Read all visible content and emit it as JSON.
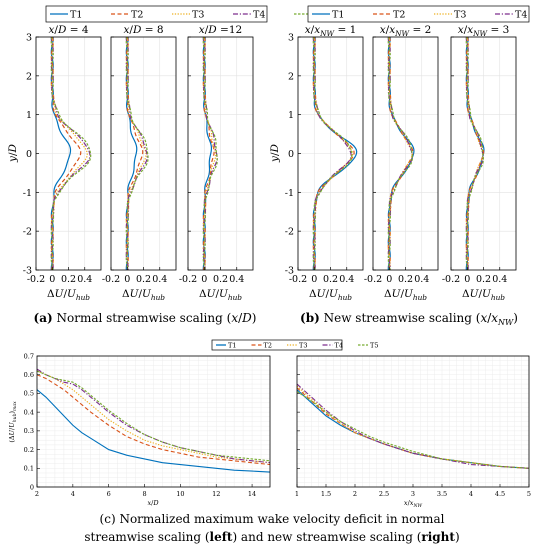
{
  "legend": [
    "T1",
    "T2",
    "T3",
    "T4",
    "T5"
  ],
  "colors": {
    "T1": "#0072BD",
    "T2": "#D95319",
    "T3": "#EDB120",
    "T4": "#7E2F8E",
    "T5": "#77AC30"
  },
  "dashes": {
    "T1": "",
    "T2": "4,2.5",
    "T3": "1.3,1.5",
    "T4": "5,1.8,1.2,1.8",
    "T5": "2.5,1.5"
  },
  "captions": {
    "a": "(a) Normal streamwise scaling (x/D)",
    "b": "(b) New streamwise scaling (x/x",
    "c_line1": "(c) Normalized maximum wake velocity deficit in normal",
    "c_line2": "streamwise scaling (left) and new streamwise scaling (right)"
  },
  "chart_data": [
    {
      "id": "profiles-normal",
      "type": "line",
      "ylabel": "y/D",
      "xlabel": "ΔU/U_hub",
      "panel_titles": [
        "x/D = 4",
        "x/D = 8",
        "x/D =12"
      ],
      "xlim": [
        -0.2,
        0.6
      ],
      "ylim": [
        -3,
        3
      ],
      "xticks": [
        "-0.2",
        "0",
        "0.2",
        "0.4"
      ],
      "yticks": [
        -3,
        -2,
        -1,
        0,
        1,
        2,
        3
      ],
      "grid": true,
      "panels": [
        {
          "T1": {
            "peak": 0.22,
            "width": 0.48
          },
          "T2": {
            "peak": 0.34,
            "width": 0.5
          },
          "T3": {
            "peak": 0.42,
            "width": 0.52
          },
          "T4": {
            "peak": 0.46,
            "width": 0.52
          },
          "T5": {
            "peak": 0.48,
            "width": 0.53
          }
        },
        {
          "T1": {
            "peak": 0.11,
            "width": 0.48
          },
          "T2": {
            "peak": 0.18,
            "width": 0.5
          },
          "T3": {
            "peak": 0.22,
            "width": 0.52
          },
          "T4": {
            "peak": 0.24,
            "width": 0.53
          },
          "T5": {
            "peak": 0.26,
            "width": 0.53
          }
        },
        {
          "T1": {
            "peak": 0.08,
            "width": 0.52
          },
          "T2": {
            "peak": 0.11,
            "width": 0.54
          },
          "T3": {
            "peak": 0.13,
            "width": 0.56
          },
          "T4": {
            "peak": 0.15,
            "width": 0.56
          },
          "T5": {
            "peak": 0.16,
            "width": 0.57
          }
        }
      ]
    },
    {
      "id": "profiles-new",
      "type": "line",
      "ylabel": "y/D",
      "xlabel": "ΔU/U_hub",
      "panel_titles": [
        "x/x_NW = 1",
        "x/x_NW = 2",
        "x/x_NW = 3"
      ],
      "xlim": [
        -0.2,
        0.6
      ],
      "ylim": [
        -3,
        3
      ],
      "xticks": [
        "-0.2",
        "0",
        "0.2",
        "0.4"
      ],
      "yticks": [
        -3,
        -2,
        -1,
        0,
        1,
        2,
        3
      ],
      "grid": true,
      "panels": [
        {
          "T1": {
            "peak": 0.52,
            "width": 0.46
          },
          "T2": {
            "peak": 0.48,
            "width": 0.48
          },
          "T3": {
            "peak": 0.46,
            "width": 0.5
          },
          "T4": {
            "peak": 0.45,
            "width": 0.5
          },
          "T5": {
            "peak": 0.47,
            "width": 0.5
          }
        },
        {
          "T1": {
            "peak": 0.3,
            "width": 0.48
          },
          "T2": {
            "peak": 0.28,
            "width": 0.5
          },
          "T3": {
            "peak": 0.27,
            "width": 0.51
          },
          "T4": {
            "peak": 0.28,
            "width": 0.51
          },
          "T5": {
            "peak": 0.29,
            "width": 0.52
          }
        },
        {
          "T1": {
            "peak": 0.2,
            "width": 0.5
          },
          "T2": {
            "peak": 0.19,
            "width": 0.52
          },
          "T3": {
            "peak": 0.18,
            "width": 0.53
          },
          "T4": {
            "peak": 0.19,
            "width": 0.53
          },
          "T5": {
            "peak": 0.2,
            "width": 0.54
          }
        }
      ]
    },
    {
      "id": "deficit-normal",
      "type": "line",
      "xlabel": "x/D",
      "ylabel": "(ΔU/U_hub)_max",
      "xlim": [
        2,
        15
      ],
      "ylim": [
        0,
        0.7
      ],
      "xticks": [
        2,
        4,
        6,
        8,
        10,
        12,
        14
      ],
      "yticks": [
        0,
        0.1,
        0.2,
        0.3,
        0.4,
        0.5,
        0.6,
        0.7
      ],
      "grid": true,
      "x": [
        2,
        2.5,
        3,
        3.5,
        4,
        4.5,
        5,
        6,
        7,
        8,
        9,
        10,
        11,
        12,
        13,
        14,
        15
      ],
      "series": [
        {
          "name": "T1",
          "values": [
            0.52,
            0.48,
            0.43,
            0.38,
            0.33,
            0.29,
            0.26,
            0.2,
            0.17,
            0.15,
            0.13,
            0.12,
            0.11,
            0.1,
            0.09,
            0.085,
            0.08
          ]
        },
        {
          "name": "T2",
          "values": [
            0.6,
            0.58,
            0.55,
            0.52,
            0.48,
            0.44,
            0.4,
            0.33,
            0.27,
            0.23,
            0.2,
            0.18,
            0.16,
            0.15,
            0.14,
            0.13,
            0.12
          ]
        },
        {
          "name": "T3",
          "values": [
            0.62,
            0.6,
            0.58,
            0.55,
            0.52,
            0.48,
            0.44,
            0.36,
            0.3,
            0.25,
            0.22,
            0.2,
            0.18,
            0.16,
            0.15,
            0.14,
            0.13
          ]
        },
        {
          "name": "T4",
          "values": [
            0.63,
            0.6,
            0.58,
            0.56,
            0.55,
            0.52,
            0.48,
            0.4,
            0.33,
            0.28,
            0.24,
            0.21,
            0.19,
            0.17,
            0.15,
            0.14,
            0.13
          ]
        },
        {
          "name": "T5",
          "values": [
            0.62,
            0.6,
            0.58,
            0.57,
            0.56,
            0.53,
            0.49,
            0.41,
            0.34,
            0.28,
            0.24,
            0.21,
            0.19,
            0.17,
            0.16,
            0.15,
            0.14
          ]
        }
      ]
    },
    {
      "id": "deficit-new",
      "type": "line",
      "xlabel": "x/x_NW",
      "xlim": [
        1,
        5
      ],
      "ylim": [
        0,
        0.7
      ],
      "xticks": [
        "1",
        "1.5",
        "2",
        "2.5",
        "3",
        "3.5",
        "4",
        "4.5",
        "5"
      ],
      "grid": true,
      "x": [
        1,
        1.25,
        1.5,
        1.75,
        2,
        2.25,
        2.5,
        3,
        3.5,
        4,
        4.5,
        5
      ],
      "series": [
        {
          "name": "T1",
          "values": [
            0.52,
            0.45,
            0.38,
            0.33,
            0.29,
            0.26,
            0.23,
            0.18,
            0.15,
            0.13,
            0.11,
            0.1
          ]
        },
        {
          "name": "T2",
          "values": [
            0.53,
            0.46,
            0.39,
            0.34,
            0.29,
            0.26,
            0.23,
            0.18,
            0.15,
            0.13,
            0.11,
            0.1
          ]
        },
        {
          "name": "T3",
          "values": [
            0.54,
            0.47,
            0.4,
            0.34,
            0.29,
            0.26,
            0.23,
            0.18,
            0.15,
            0.13,
            0.11,
            0.1
          ]
        },
        {
          "name": "T4",
          "values": [
            0.55,
            0.48,
            0.41,
            0.35,
            0.3,
            0.26,
            0.23,
            0.18,
            0.15,
            0.12,
            0.11,
            0.1
          ]
        },
        {
          "name": "T5",
          "values": [
            0.51,
            0.46,
            0.4,
            0.35,
            0.31,
            0.27,
            0.24,
            0.19,
            0.15,
            0.13,
            0.11,
            0.1
          ]
        }
      ]
    }
  ]
}
